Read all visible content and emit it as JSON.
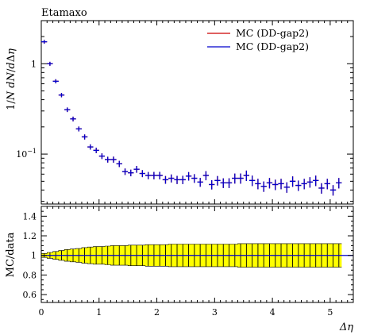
{
  "chart_data": [
    {
      "type": "scatter",
      "title": "Etamaxo",
      "xlabel": "",
      "ylabel": "1/N dN/dΔη",
      "ylabel_parts": [
        "1/",
        "N",
        " ",
        "dN",
        "/",
        "d",
        "Δ",
        "η"
      ],
      "log_y": true,
      "xlim": [
        0,
        5.4
      ],
      "ylim": [
        0.028,
        3.0
      ],
      "yticks": [
        {
          "value": 1,
          "label": "1"
        },
        {
          "value": 0.1,
          "label": "10",
          "exp": "−1"
        }
      ],
      "legend_position": "top-right",
      "series": [
        {
          "name": "MC (DD-gap2)",
          "color": "#cc0000",
          "x": [
            0.05,
            0.15,
            0.25,
            0.35,
            0.45,
            0.55,
            0.65,
            0.75,
            0.85,
            0.95,
            1.05,
            1.15,
            1.25,
            1.35,
            1.45,
            1.55,
            1.65,
            1.75,
            1.85,
            1.95,
            2.05,
            2.15,
            2.25,
            2.35,
            2.45,
            2.55,
            2.65,
            2.75,
            2.85,
            2.95,
            3.05,
            3.15,
            3.25,
            3.35,
            3.45,
            3.55,
            3.65,
            3.75,
            3.85,
            3.95,
            4.05,
            4.15,
            4.25,
            4.35,
            4.45,
            4.55,
            4.65,
            4.75,
            4.85,
            4.95,
            5.05,
            5.15
          ],
          "y": [
            1.75,
            1.0,
            0.64,
            0.45,
            0.31,
            0.245,
            0.19,
            0.155,
            0.12,
            0.11,
            0.095,
            0.087,
            0.087,
            0.078,
            0.064,
            0.062,
            0.068,
            0.061,
            0.058,
            0.058,
            0.058,
            0.052,
            0.054,
            0.052,
            0.052,
            0.057,
            0.054,
            0.049,
            0.058,
            0.046,
            0.051,
            0.048,
            0.048,
            0.054,
            0.054,
            0.058,
            0.051,
            0.047,
            0.044,
            0.048,
            0.046,
            0.047,
            0.043,
            0.05,
            0.045,
            0.047,
            0.049,
            0.051,
            0.042,
            0.047,
            0.04,
            0.048
          ]
        },
        {
          "name": "MC (DD-gap2)",
          "color": "#0000cc",
          "x": [
            0.05,
            0.15,
            0.25,
            0.35,
            0.45,
            0.55,
            0.65,
            0.75,
            0.85,
            0.95,
            1.05,
            1.15,
            1.25,
            1.35,
            1.45,
            1.55,
            1.65,
            1.75,
            1.85,
            1.95,
            2.05,
            2.15,
            2.25,
            2.35,
            2.45,
            2.55,
            2.65,
            2.75,
            2.85,
            2.95,
            3.05,
            3.15,
            3.25,
            3.35,
            3.45,
            3.55,
            3.65,
            3.75,
            3.85,
            3.95,
            4.05,
            4.15,
            4.25,
            4.35,
            4.45,
            4.55,
            4.65,
            4.75,
            4.85,
            4.95,
            5.05,
            5.15
          ],
          "y": [
            1.75,
            1.0,
            0.64,
            0.45,
            0.31,
            0.245,
            0.19,
            0.155,
            0.12,
            0.11,
            0.095,
            0.087,
            0.087,
            0.078,
            0.064,
            0.062,
            0.068,
            0.061,
            0.058,
            0.058,
            0.058,
            0.052,
            0.054,
            0.052,
            0.052,
            0.057,
            0.054,
            0.049,
            0.058,
            0.046,
            0.051,
            0.048,
            0.048,
            0.054,
            0.054,
            0.058,
            0.051,
            0.047,
            0.044,
            0.048,
            0.046,
            0.047,
            0.043,
            0.05,
            0.045,
            0.047,
            0.049,
            0.051,
            0.042,
            0.047,
            0.04,
            0.048
          ]
        }
      ]
    },
    {
      "type": "area",
      "title": "",
      "xlabel": "Δη",
      "ylabel": "MC/data",
      "xlim": [
        0,
        5.4
      ],
      "ylim": [
        0.52,
        1.5
      ],
      "xticks": [
        0,
        1,
        2,
        3,
        4,
        5
      ],
      "yticks": [
        0.6,
        0.8,
        1.0,
        1.2,
        1.4
      ],
      "ytick_labels": [
        "0.6",
        "0.8",
        "1",
        "1.2",
        "1.4"
      ],
      "band_color": "#ffff00",
      "ratio_line_color": "#0000cc",
      "band": {
        "x": [
          0.05,
          0.15,
          0.25,
          0.35,
          0.45,
          0.55,
          0.65,
          0.75,
          0.85,
          0.95,
          1.05,
          1.15,
          1.25,
          1.35,
          1.45,
          1.55,
          1.65,
          1.75,
          1.85,
          1.95,
          2.05,
          2.15,
          2.25,
          2.35,
          2.45,
          2.55,
          2.65,
          2.75,
          2.85,
          2.95,
          3.05,
          3.15,
          3.25,
          3.35,
          3.45,
          3.55,
          3.65,
          3.75,
          3.85,
          3.95,
          4.05,
          4.15,
          4.25,
          4.35,
          4.45,
          4.55,
          4.65,
          4.75,
          4.85,
          4.95,
          5.05,
          5.15
        ],
        "half_width": [
          0.02,
          0.03,
          0.04,
          0.05,
          0.06,
          0.065,
          0.07,
          0.08,
          0.085,
          0.09,
          0.09,
          0.095,
          0.1,
          0.1,
          0.1,
          0.105,
          0.105,
          0.105,
          0.11,
          0.11,
          0.11,
          0.11,
          0.115,
          0.115,
          0.115,
          0.115,
          0.115,
          0.115,
          0.115,
          0.115,
          0.115,
          0.115,
          0.115,
          0.115,
          0.12,
          0.12,
          0.12,
          0.12,
          0.12,
          0.12,
          0.12,
          0.12,
          0.12,
          0.12,
          0.12,
          0.12,
          0.12,
          0.12,
          0.12,
          0.12,
          0.12,
          0.12
        ]
      }
    }
  ]
}
